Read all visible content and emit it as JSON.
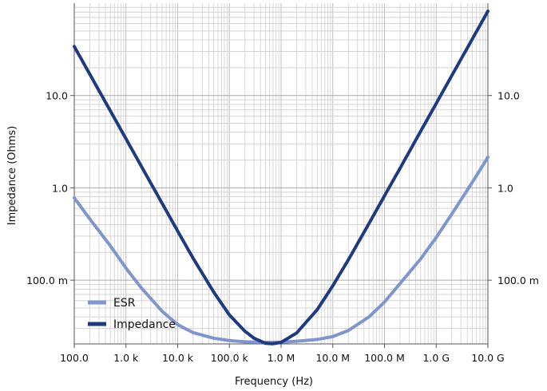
{
  "chart_data": {
    "type": "line",
    "xlabel": "Frequency (Hz)",
    "ylabel": "Impedance (Ohms)",
    "x_scale": "log",
    "y_scale": "log",
    "xlim": [
      100,
      10000000000
    ],
    "ylim": [
      0.0204,
      100
    ],
    "grid": true,
    "legend_position": "bottom-left",
    "x_ticks": [
      {
        "value": 100,
        "label": "100.0"
      },
      {
        "value": 1000,
        "label": "1.0 k"
      },
      {
        "value": 10000,
        "label": "10.0 k"
      },
      {
        "value": 100000,
        "label": "100.0 k"
      },
      {
        "value": 1000000,
        "label": "1.0 M"
      },
      {
        "value": 10000000,
        "label": "10.0 M"
      },
      {
        "value": 100000000,
        "label": "100.0 M"
      },
      {
        "value": 1000000000,
        "label": "1.0 G"
      },
      {
        "value": 10000000000,
        "label": "10.0 G"
      }
    ],
    "y_ticks": [
      {
        "value": 0.1,
        "label": "100.0 m"
      },
      {
        "value": 1,
        "label": "1.0"
      },
      {
        "value": 10,
        "label": "10.0"
      }
    ],
    "series": [
      {
        "name": "ESR",
        "color": "#7f96cc",
        "x": [
          100,
          200,
          500,
          1000,
          2000,
          5000,
          10000,
          20000,
          50000,
          100000,
          200000,
          500000,
          1000000,
          2000000,
          5000000,
          10000000,
          20000000,
          50000000,
          100000000,
          200000000,
          500000000,
          1000000000,
          2000000000,
          5000000000,
          10000000000
        ],
        "y": [
          0.78,
          0.46,
          0.235,
          0.135,
          0.082,
          0.046,
          0.033,
          0.027,
          0.0235,
          0.0222,
          0.0215,
          0.0212,
          0.0213,
          0.0218,
          0.0228,
          0.0245,
          0.0285,
          0.04,
          0.058,
          0.092,
          0.17,
          0.29,
          0.52,
          1.15,
          2.15
        ]
      },
      {
        "name": "Impedance",
        "color": "#1f3a80",
        "x": [
          100,
          200,
          500,
          1000,
          2000,
          5000,
          10000,
          20000,
          50000,
          100000,
          200000,
          300000,
          500000,
          700000,
          1000000,
          2000000,
          5000000,
          10000000,
          20000000,
          50000000,
          100000000,
          200000000,
          500000000,
          1000000000,
          2000000000,
          5000000000,
          10000000000
        ],
        "y": [
          34,
          17,
          6.8,
          3.4,
          1.7,
          0.68,
          0.34,
          0.172,
          0.074,
          0.042,
          0.028,
          0.0235,
          0.0207,
          0.0205,
          0.0212,
          0.0268,
          0.048,
          0.087,
          0.166,
          0.41,
          0.82,
          1.63,
          4.1,
          8.2,
          16.4,
          41,
          82
        ]
      }
    ]
  }
}
